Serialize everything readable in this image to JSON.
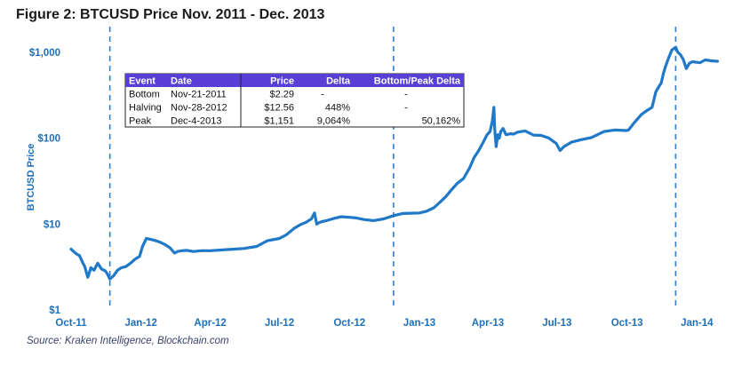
{
  "title": "Figure 2: BTCUSD Price Nov. 2011 - Dec. 2013",
  "source": "Source: Kraken Intelligence, Blockchain.com",
  "colors": {
    "line": "#1f78c8",
    "axis_text": "#1f6fb8",
    "table_header": "#5a3fd6",
    "dashed": "#2f7fd0"
  },
  "chart_data": {
    "type": "line",
    "title": "Figure 2: BTCUSD Price Nov. 2011 - Dec. 2013",
    "ylabel": "BTCUSD Price",
    "xlabel": "",
    "y_scale": "log",
    "ylim": [
      1,
      2000
    ],
    "y_ticks": [
      {
        "value": 1,
        "label": "$1"
      },
      {
        "value": 10,
        "label": "$10"
      },
      {
        "value": 100,
        "label": "$100"
      },
      {
        "value": 1000,
        "label": "$1,000"
      }
    ],
    "x_ticks": [
      {
        "date": "2011-10-01",
        "label": "Oct-11"
      },
      {
        "date": "2012-01-01",
        "label": "Jan-12"
      },
      {
        "date": "2012-04-01",
        "label": "Apr-12"
      },
      {
        "date": "2012-07-01",
        "label": "Jul-12"
      },
      {
        "date": "2012-10-01",
        "label": "Oct-12"
      },
      {
        "date": "2013-01-01",
        "label": "Jan-13"
      },
      {
        "date": "2013-04-01",
        "label": "Apr-13"
      },
      {
        "date": "2013-07-01",
        "label": "Jul-13"
      },
      {
        "date": "2013-10-01",
        "label": "Oct-13"
      },
      {
        "date": "2014-01-01",
        "label": "Jan-14"
      }
    ],
    "xlim": [
      "2011-10-01",
      "2014-01-31"
    ],
    "vlines": [
      {
        "date": "2011-11-21",
        "style": "dashed"
      },
      {
        "date": "2012-11-28",
        "style": "dashed"
      },
      {
        "date": "2013-12-04",
        "style": "dashed"
      }
    ],
    "series": [
      {
        "x": [
          "2011-10-01",
          "2011-10-08",
          "2011-10-12",
          "2011-10-16",
          "2011-10-19",
          "2011-10-23",
          "2011-10-27",
          "2011-10-31",
          "2011-11-05",
          "2011-11-10",
          "2011-11-15",
          "2011-11-18",
          "2011-11-21",
          "2011-11-26",
          "2011-12-01",
          "2011-12-06",
          "2011-12-12",
          "2011-12-18",
          "2011-12-24",
          "2011-12-30",
          "2012-01-03",
          "2012-01-08",
          "2012-01-12",
          "2012-01-18",
          "2012-01-25",
          "2012-02-01",
          "2012-02-08",
          "2012-02-14",
          "2012-02-18",
          "2012-02-24",
          "2012-03-01",
          "2012-03-10",
          "2012-03-20",
          "2012-04-01",
          "2012-04-15",
          "2012-05-01",
          "2012-05-15",
          "2012-06-01",
          "2012-06-15",
          "2012-07-01",
          "2012-07-10",
          "2012-07-20",
          "2012-07-28",
          "2012-08-05",
          "2012-08-12",
          "2012-08-16",
          "2012-08-19",
          "2012-08-22",
          "2012-08-26",
          "2012-09-01",
          "2012-09-10",
          "2012-09-20",
          "2012-10-01",
          "2012-10-10",
          "2012-10-20",
          "2012-11-01",
          "2012-11-15",
          "2012-11-28",
          "2012-12-10",
          "2012-12-20",
          "2013-01-01",
          "2013-01-10",
          "2013-01-20",
          "2013-01-28",
          "2013-02-05",
          "2013-02-12",
          "2013-02-20",
          "2013-02-28",
          "2013-03-08",
          "2013-03-14",
          "2013-03-20",
          "2013-03-26",
          "2013-03-31",
          "2013-04-04",
          "2013-04-07",
          "2013-04-09",
          "2013-04-10",
          "2013-04-11",
          "2013-04-12",
          "2013-04-14",
          "2013-04-16",
          "2013-04-18",
          "2013-04-21",
          "2013-04-25",
          "2013-05-01",
          "2013-05-05",
          "2013-05-10",
          "2013-05-20",
          "2013-05-31",
          "2013-06-10",
          "2013-06-20",
          "2013-06-30",
          "2013-07-05",
          "2013-07-10",
          "2013-07-20",
          "2013-08-01",
          "2013-08-15",
          "2013-09-01",
          "2013-09-15",
          "2013-09-30",
          "2013-10-03",
          "2013-10-10",
          "2013-10-20",
          "2013-10-27",
          "2013-11-03",
          "2013-11-08",
          "2013-11-12",
          "2013-11-15",
          "2013-11-18",
          "2013-11-21",
          "2013-11-25",
          "2013-11-29",
          "2013-12-04",
          "2013-12-07",
          "2013-12-10",
          "2013-12-14",
          "2013-12-18",
          "2013-12-22",
          "2013-12-26",
          "2013-12-31",
          "2014-01-05",
          "2014-01-12",
          "2014-01-20",
          "2014-01-28"
        ],
        "values": [
          5.1,
          4.5,
          4.3,
          3.6,
          3.2,
          2.4,
          3.1,
          2.9,
          3.5,
          3.0,
          2.85,
          2.6,
          2.29,
          2.5,
          2.9,
          3.1,
          3.2,
          3.5,
          3.9,
          4.2,
          5.5,
          6.8,
          6.7,
          6.5,
          6.2,
          5.8,
          5.3,
          4.6,
          4.8,
          4.9,
          4.95,
          4.8,
          4.9,
          4.9,
          5.0,
          5.1,
          5.2,
          5.5,
          6.4,
          6.8,
          7.5,
          8.9,
          9.8,
          10.5,
          11.5,
          13.5,
          10.0,
          10.4,
          10.7,
          11.0,
          11.6,
          12.2,
          12.0,
          11.8,
          11.3,
          11.0,
          11.5,
          12.56,
          13.3,
          13.4,
          13.5,
          14.1,
          15.5,
          18,
          21,
          25,
          30,
          34,
          45,
          60,
          72,
          90,
          110,
          120,
          160,
          230,
          130,
          100,
          80,
          110,
          100,
          120,
          130,
          110,
          113,
          112,
          118,
          122,
          109,
          108,
          101,
          87,
          72,
          80,
          90,
          96,
          102,
          120,
          125,
          123,
          125,
          150,
          190,
          210,
          230,
          350,
          400,
          440,
          580,
          700,
          880,
          1070,
          1151,
          1000,
          950,
          830,
          650,
          750,
          780,
          770,
          760,
          820,
          800,
          790
        ]
      }
    ],
    "table": {
      "columns": [
        "Event",
        "Date",
        "Price",
        "Delta",
        "Bottom/Peak Delta"
      ],
      "rows": [
        [
          "Bottom",
          "Nov-21-2011",
          "$2.29",
          "-",
          "-"
        ],
        [
          "Halving",
          "Nov-28-2012",
          "$12.56",
          "448%",
          "-"
        ],
        [
          "Peak",
          "Dec-4-2013",
          "$1,151",
          "9,064%",
          "50,162%"
        ]
      ]
    }
  }
}
